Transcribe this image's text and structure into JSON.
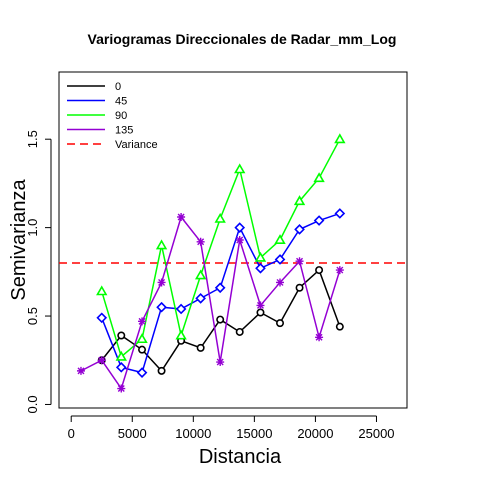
{
  "chart_data": {
    "type": "line",
    "title": "Variogramas Direccionales de Radar_mm_Log",
    "xlabel": "Distancia",
    "ylabel": "Semivarianza",
    "xlim": [
      -1000,
      27500
    ],
    "ylim": [
      -0.02,
      1.88
    ],
    "xticks": [
      0,
      5000,
      10000,
      15000,
      20000,
      25000
    ],
    "xtick_labels": [
      "0",
      "5000",
      "10000",
      "15000",
      "20000",
      "25000"
    ],
    "yticks": [
      0,
      0.5,
      1,
      1.5
    ],
    "ytick_labels": [
      "0.0",
      "0.5",
      "1.0",
      "1.5"
    ],
    "grid": false,
    "legend_position": "top-left",
    "series": [
      {
        "name": "0",
        "color": "#000000",
        "marker": "circle",
        "x": [
          2500,
          4100,
          5800,
          7400,
          9000,
          10600,
          12200,
          13800,
          15500,
          17100,
          18700,
          20300,
          22000
        ],
        "y": [
          0.25,
          0.39,
          0.31,
          0.19,
          0.36,
          0.32,
          0.48,
          0.41,
          0.52,
          0.46,
          0.66,
          0.76,
          0.44
        ]
      },
      {
        "name": "45",
        "color": "#0000ff",
        "marker": "diamond",
        "x": [
          2500,
          4100,
          5800,
          7400,
          9000,
          10600,
          12200,
          13800,
          15500,
          17100,
          18700,
          20300,
          22000
        ],
        "y": [
          0.49,
          0.21,
          0.18,
          0.55,
          0.54,
          0.6,
          0.66,
          1.0,
          0.77,
          0.82,
          0.99,
          1.04,
          1.08
        ]
      },
      {
        "name": "90",
        "color": "#00ff00",
        "marker": "triangle",
        "x": [
          2500,
          4100,
          5800,
          7400,
          9000,
          10600,
          12200,
          13800,
          15500,
          17100,
          18700,
          20300,
          22000
        ],
        "y": [
          0.64,
          0.27,
          0.37,
          0.9,
          0.39,
          0.73,
          1.05,
          1.33,
          0.83,
          0.93,
          1.15,
          1.28,
          1.5
        ]
      },
      {
        "name": "135",
        "color": "#9400d3",
        "marker": "star",
        "x": [
          800,
          2500,
          4100,
          5800,
          7400,
          9000,
          10600,
          12200,
          13800,
          15500,
          17100,
          18700,
          20300,
          22000
        ],
        "y": [
          0.19,
          0.25,
          0.09,
          0.47,
          0.69,
          1.06,
          0.92,
          0.24,
          0.93,
          0.56,
          0.69,
          0.81,
          0.38,
          0.76
        ]
      }
    ],
    "reference_line": {
      "name": "Variance",
      "y": 0.8,
      "color": "#ff0000",
      "style": "dashed"
    }
  }
}
